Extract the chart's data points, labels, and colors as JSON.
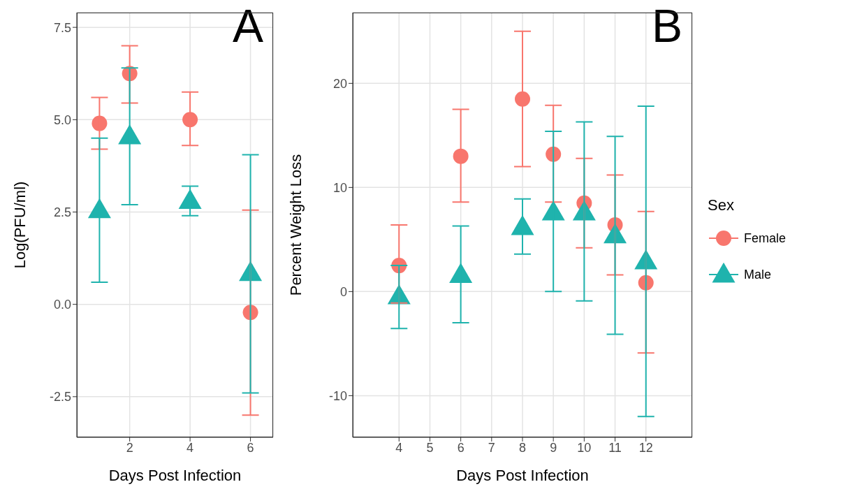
{
  "chart_data": [
    {
      "type": "scatter",
      "xlabel": "Days Post Infection",
      "ylabel": "Log(PFU/ml)",
      "annotations": [
        "A"
      ],
      "xlim": [
        0.25,
        6.75
      ],
      "xticks": [
        2,
        4,
        6
      ],
      "ylim": [
        -3.6,
        7.9
      ],
      "yticks": [
        {
          "value": -2.5,
          "label": "-2.5"
        },
        {
          "value": 0,
          "label": "0.0"
        },
        2.5,
        {
          "value": 5,
          "label": "5.0"
        },
        7.5
      ],
      "grid": true,
      "series": [
        {
          "color": "#f8766d",
          "marker": "circle",
          "x": [
            1,
            2,
            4,
            6
          ],
          "values": [
            4.9,
            6.25,
            5.0,
            -0.22
          ],
          "errors": [
            [
              4.2,
              5.6
            ],
            [
              5.45,
              7.0
            ],
            [
              4.3,
              5.75
            ],
            [
              -3.0,
              2.55
            ]
          ]
        },
        {
          "color": "#1fb3ad",
          "marker": "triangle",
          "x": [
            1,
            2,
            4,
            6
          ],
          "values": [
            2.55,
            4.55,
            2.8,
            0.85
          ],
          "errors": [
            [
              0.6,
              4.5
            ],
            [
              2.7,
              6.4
            ],
            [
              2.4,
              3.2
            ],
            [
              -2.4,
              4.05
            ]
          ]
        }
      ]
    },
    {
      "type": "scatter",
      "xlabel": "Days Post Infection",
      "ylabel": "Percent Weight Loss",
      "annotations": [
        "B"
      ],
      "xlim": [
        2.5,
        13.5
      ],
      "xticks": [
        4,
        5,
        6,
        7,
        8,
        9,
        10,
        11,
        12
      ],
      "ylim": [
        -14,
        26.8
      ],
      "yticks": [
        -10,
        0,
        10,
        20
      ],
      "grid": true,
      "legend": "right",
      "legend_title": "Sex",
      "series": [
        {
          "name": "Female",
          "color": "#f8766d",
          "marker": "circle",
          "x": [
            4,
            6,
            8,
            9,
            10,
            11,
            12
          ],
          "values": [
            2.5,
            13.0,
            18.5,
            13.2,
            8.5,
            6.4,
            0.85
          ],
          "errors": [
            [
              -1.1,
              6.4
            ],
            [
              8.6,
              17.5
            ],
            [
              12.0,
              25
            ],
            [
              8.6,
              17.9
            ],
            [
              4.2,
              12.8
            ],
            [
              1.6,
              11.2
            ],
            [
              -5.9,
              7.7
            ]
          ]
        },
        {
          "name": "Male",
          "color": "#1fb3ad",
          "marker": "triangle",
          "x": [
            4,
            6,
            8,
            9,
            10,
            11,
            12
          ],
          "values": [
            -0.45,
            1.6,
            6.2,
            7.6,
            7.6,
            5.4,
            2.9
          ],
          "errors": [
            [
              -3.55,
              2.5
            ],
            [
              -3.0,
              6.3
            ],
            [
              3.6,
              8.9
            ],
            [
              0,
              15.4
            ],
            [
              -0.9,
              16.3
            ],
            [
              -4.1,
              14.9
            ],
            [
              -12.0,
              17.8
            ]
          ]
        }
      ]
    }
  ]
}
